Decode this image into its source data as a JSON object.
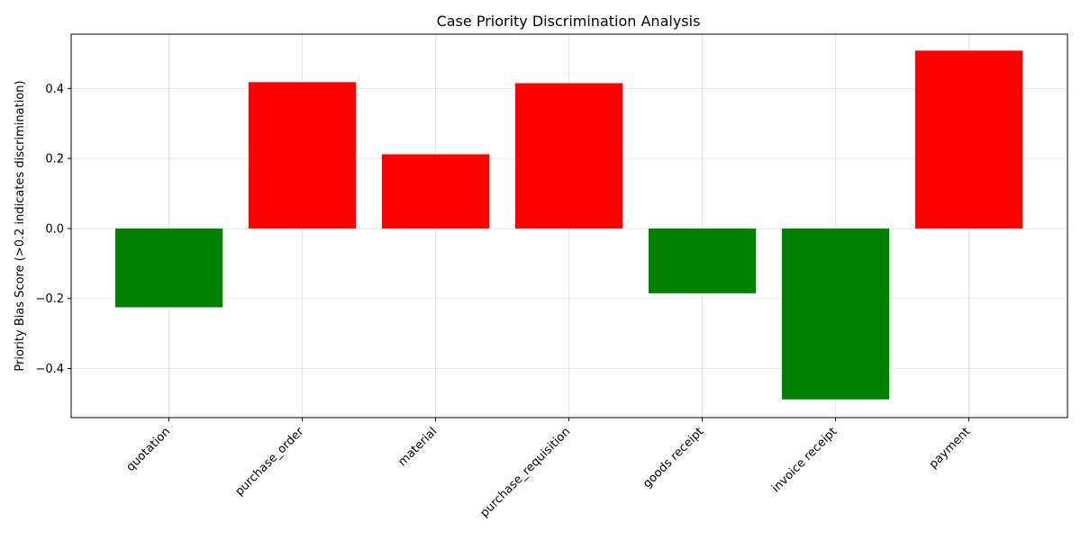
{
  "chart_data": {
    "type": "bar",
    "title": "Case Priority Discrimination Analysis",
    "xlabel": "",
    "ylabel": "Priority Bias Score (>0.2 indicates discrimination)",
    "categories": [
      "quotation",
      "purchase_order",
      "material",
      "purchase_requisition",
      "goods receipt",
      "invoice receipt",
      "payment"
    ],
    "values": [
      -0.225,
      0.418,
      0.212,
      0.415,
      -0.185,
      -0.488,
      0.508
    ],
    "colors": [
      "#008000",
      "#ff0000",
      "#ff0000",
      "#ff0000",
      "#008000",
      "#008000",
      "#ff0000"
    ],
    "ylim": [
      -0.54,
      0.555
    ],
    "yticks": [
      -0.4,
      -0.2,
      0.0,
      0.2,
      0.4
    ],
    "ytick_labels": [
      "−0.4",
      "−0.2",
      "0.0",
      "0.2",
      "0.4"
    ],
    "grid": true,
    "legend": "none"
  }
}
